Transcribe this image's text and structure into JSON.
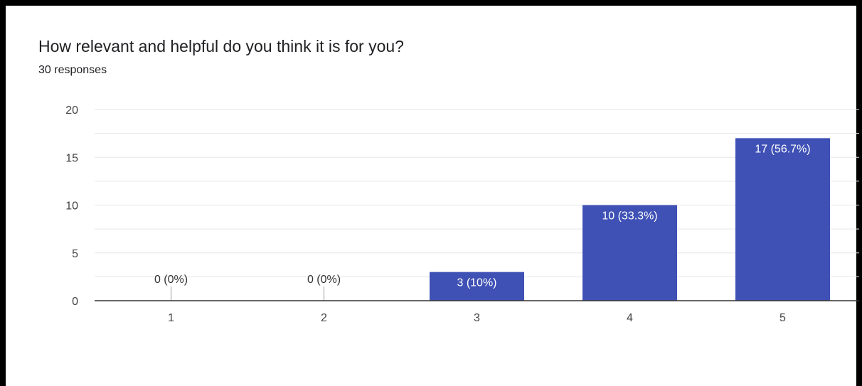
{
  "question": {
    "title": "How relevant and helpful do you think it is for you?",
    "responses": "30 responses"
  },
  "colors": {
    "bar": "#3f51b5",
    "grid": "#e6e6e6",
    "axis": "#333333",
    "label_inside": "#ffffff",
    "label_outside": "#333333"
  },
  "chart_data": {
    "type": "bar",
    "categories": [
      "1",
      "2",
      "3",
      "4",
      "5"
    ],
    "values": [
      0,
      0,
      3,
      10,
      17
    ],
    "data_labels": [
      "0 (0%)",
      "0 (0%)",
      "3 (10%)",
      "10 (33.3%)",
      "17 (56.7%)"
    ],
    "y_ticks": [
      "0",
      "5",
      "10",
      "15",
      "20"
    ],
    "ylim": [
      0,
      20
    ],
    "grid": true,
    "legend": "none"
  }
}
